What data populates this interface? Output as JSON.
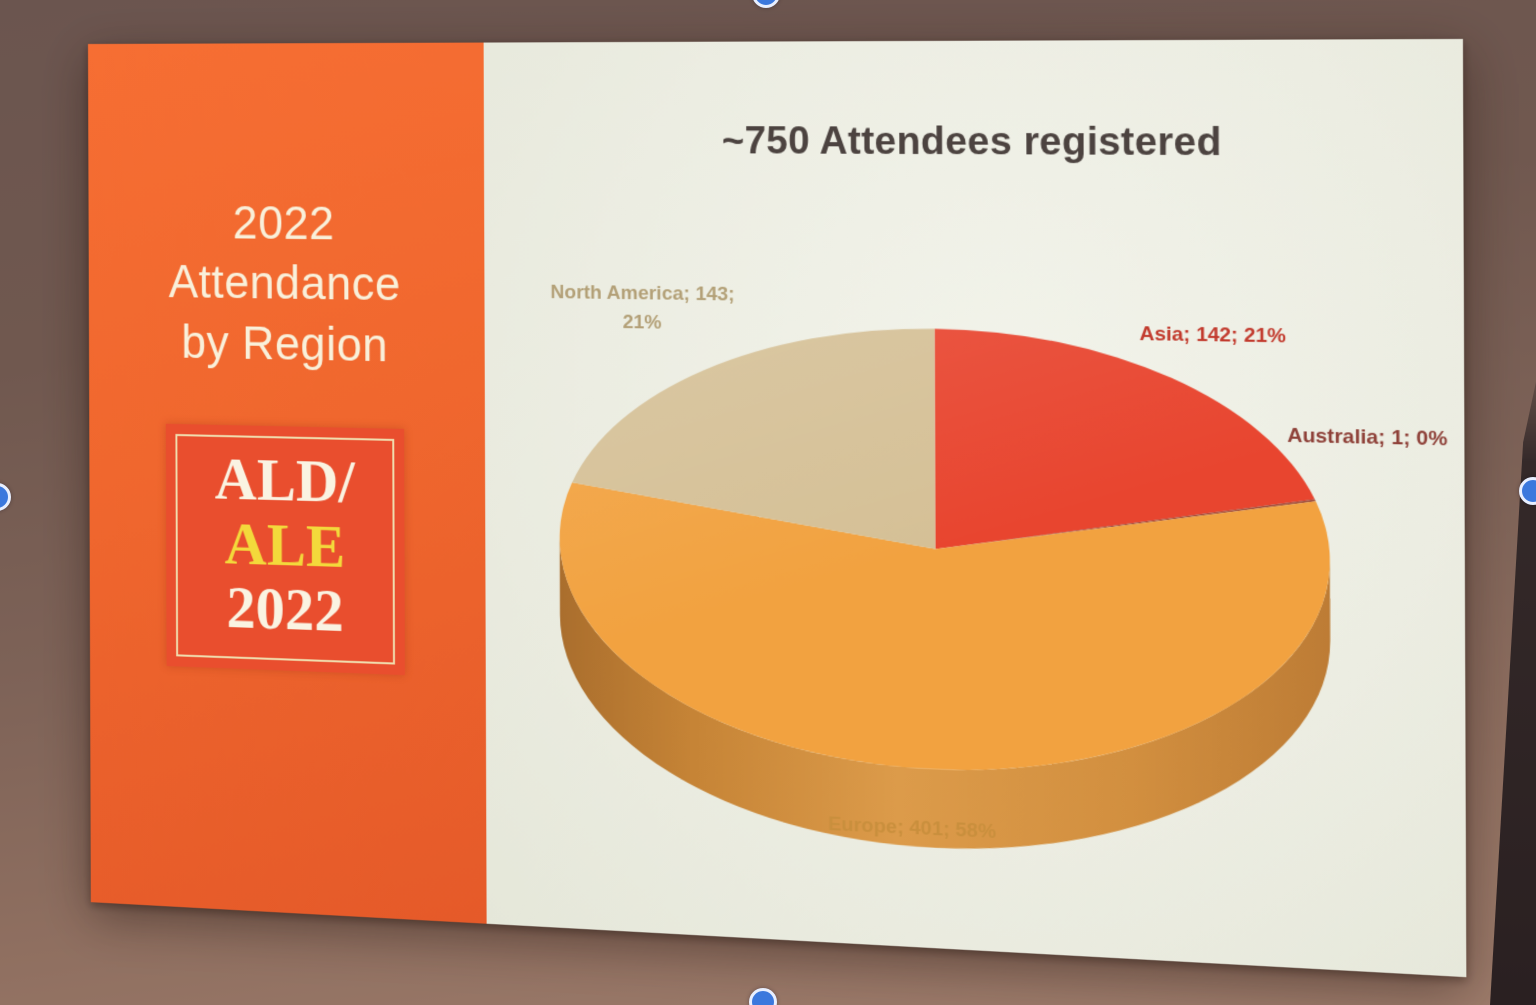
{
  "sidebar": {
    "title_lines": [
      "2022",
      "Attendance",
      "by Region"
    ],
    "logo": {
      "line1": "ALD/",
      "line2": "ALE",
      "line3": "2022"
    }
  },
  "chart_data": {
    "type": "pie",
    "title": "~750 Attendees registered",
    "style": "3d-pie",
    "legend_position": "none",
    "slices": [
      {
        "label": "Asia",
        "value": 142,
        "pct": "21%",
        "color": "#e8452f"
      },
      {
        "label": "Australia",
        "value": 1,
        "pct": "0%",
        "color": "#9c4a3a"
      },
      {
        "label": "Europe",
        "value": 401,
        "pct": "58%",
        "color": "#f2a240"
      },
      {
        "label": "North America",
        "value": 143,
        "pct": "21%",
        "color": "#d5c096"
      }
    ],
    "callouts": {
      "north_america_line1": "North America; 143;",
      "north_america_line2": "21%",
      "asia": "Asia; 142; 21%",
      "australia": "Australia; 1; 0%",
      "europe": "Europe; 401; 58%"
    },
    "label_colors": {
      "north_america": "#b3a077",
      "asia": "#c23a2d",
      "australia": "#8e4038",
      "europe": "#c98f3d"
    }
  },
  "colors": {
    "sidebar_orange": "#f0672e",
    "logo_red": "#e94e2e",
    "logo_yellow": "#f3d93b",
    "slide_background": "#ecede2",
    "chart_title_text": "#4c4340",
    "pie_rim_dark": "#c08038",
    "photo_background": "#7d6257",
    "crop_handle_blue": "#3b78dd"
  }
}
